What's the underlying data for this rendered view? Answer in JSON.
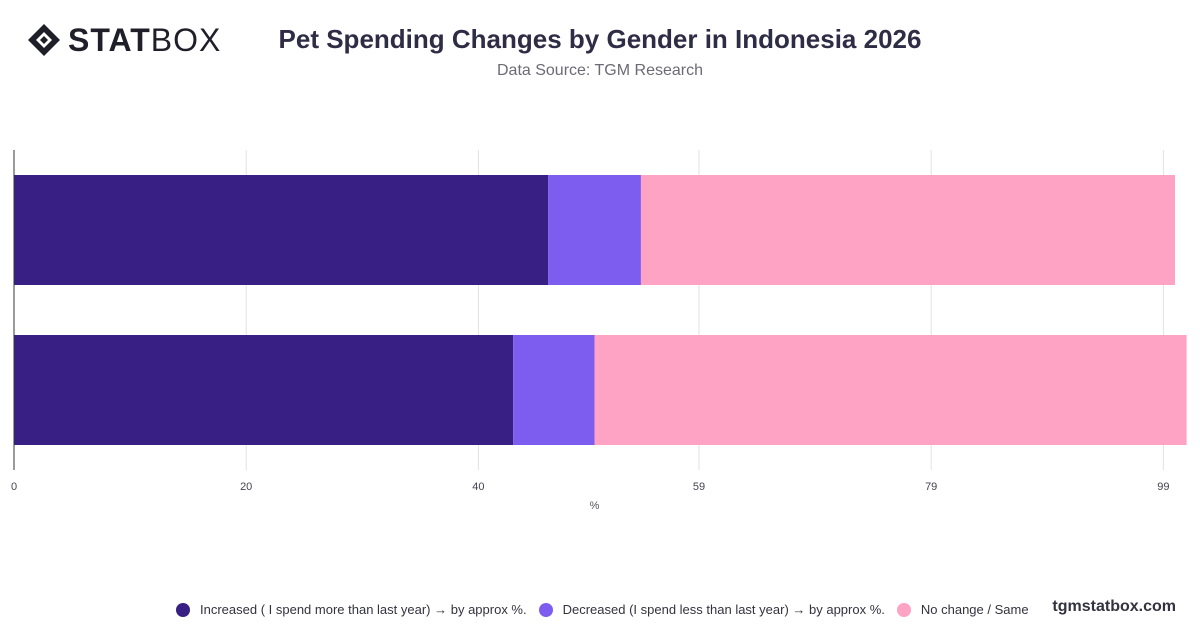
{
  "brand": {
    "logo_bold": "STAT",
    "logo_light": "BOX",
    "watermark": "tgmstatbox.com"
  },
  "header": {
    "title": "Pet Spending Changes by Gender in Indonesia 2026",
    "subtitle": "Data Source: TGM Research"
  },
  "chart_data": {
    "type": "bar",
    "orientation": "horizontal",
    "stacked": true,
    "categories": [
      "",
      ""
    ],
    "series": [
      {
        "name": "Increased ( I spend more than last year) → by approx %.",
        "color": "#371f84",
        "values": [
          46,
          43
        ]
      },
      {
        "name": "Decreased (I spend less than last year) → by approx %.",
        "color": "#7d5cf0",
        "values": [
          8,
          7
        ]
      },
      {
        "name": "No change / Same",
        "color": "#ffa3c4",
        "values": [
          46,
          51
        ]
      }
    ],
    "xlabel": "%",
    "ylabel": "",
    "xlim": [
      0,
      100
    ],
    "ticks": [
      0,
      20,
      40,
      59,
      79,
      99
    ],
    "grid": true,
    "legend": "bottom"
  }
}
